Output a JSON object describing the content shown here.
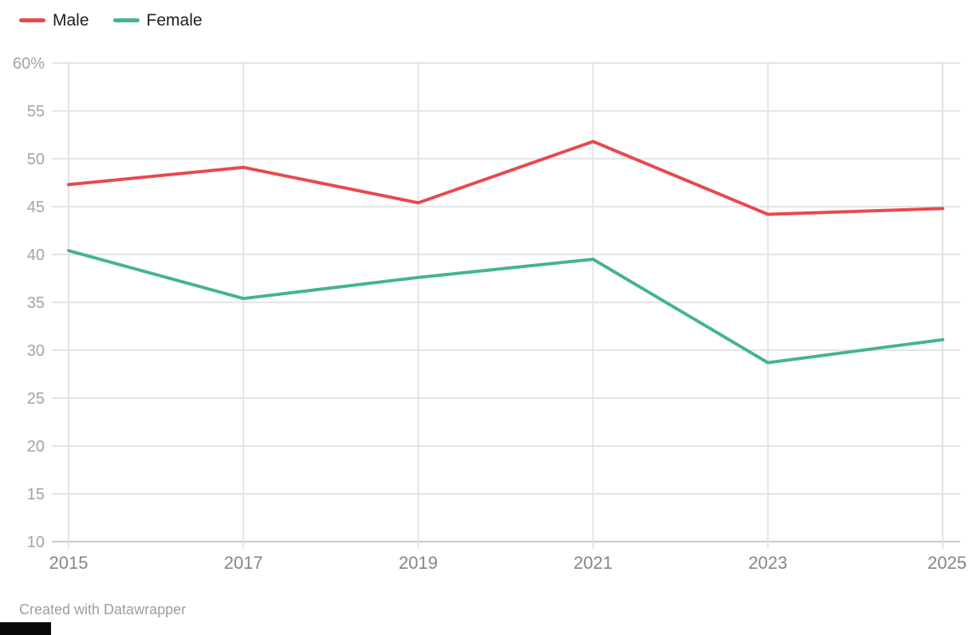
{
  "footer": {
    "attribution": "Created with Datawrapper"
  },
  "chart_data": {
    "type": "line",
    "x": [
      2015,
      2017,
      2019,
      2021,
      2023,
      2025
    ],
    "x_tick_labels": [
      "2015",
      "2017",
      "2019",
      "2021",
      "2023",
      "2025"
    ],
    "series": [
      {
        "name": "Male",
        "color": "#e8494d",
        "values": [
          47.3,
          49.1,
          45.4,
          51.8,
          44.2,
          44.8
        ]
      },
      {
        "name": "Female",
        "color": "#45b58a",
        "values": [
          40.4,
          35.4,
          37.6,
          39.5,
          28.7,
          31.1
        ]
      }
    ],
    "ylim": [
      10,
      60
    ],
    "y_ticks": [
      60,
      55,
      50,
      45,
      40,
      35,
      30,
      25,
      20,
      15,
      10
    ],
    "y_tick_labels": [
      "60%",
      "55",
      "50",
      "45",
      "40",
      "35",
      "30",
      "25",
      "20",
      "15",
      "10"
    ],
    "grid": "on",
    "grid_color": "#e4e4e4",
    "baseline_color": "#c9c9c9",
    "y_axis_text_color": "#a3a3a3",
    "x_axis_text_color": "#858585",
    "legend_position": "top-left",
    "line_width": 4
  }
}
